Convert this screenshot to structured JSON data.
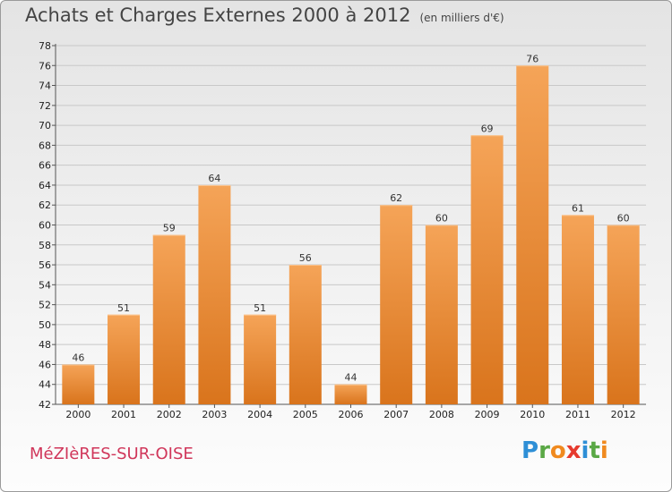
{
  "title": "Achats et Charges Externes 2000 à 2012",
  "subtitle": "(en milliers d'€)",
  "location": "MéZIèRES-SUR-OISE",
  "brand": [
    "P",
    "r",
    "o",
    "x",
    "i",
    "t",
    "i"
  ],
  "colors": {
    "bar_top": "#f5a458",
    "bar_bottom": "#d9741c",
    "location": "#d0365a",
    "brand": [
      "#2e8fd6",
      "#5aa845",
      "#f08a1f",
      "#e63a2e",
      "#2e8fd6",
      "#5aa845",
      "#f08a1f"
    ]
  },
  "chart_data": {
    "type": "bar",
    "title": "Achats et Charges Externes 2000 à 2012",
    "subtitle": "(en milliers d'€)",
    "xlabel": "",
    "ylabel": "",
    "categories": [
      "2000",
      "2001",
      "2002",
      "2003",
      "2004",
      "2005",
      "2006",
      "2007",
      "2008",
      "2009",
      "2010",
      "2011",
      "2012"
    ],
    "values": [
      46,
      51,
      59,
      64,
      51,
      56,
      44,
      62,
      60,
      69,
      76,
      61,
      60
    ],
    "ylim": [
      42,
      78
    ],
    "yticks": [
      42,
      44,
      46,
      48,
      50,
      52,
      54,
      56,
      58,
      60,
      62,
      64,
      66,
      68,
      70,
      72,
      74,
      76,
      78
    ],
    "grid": true,
    "legend": "none"
  }
}
